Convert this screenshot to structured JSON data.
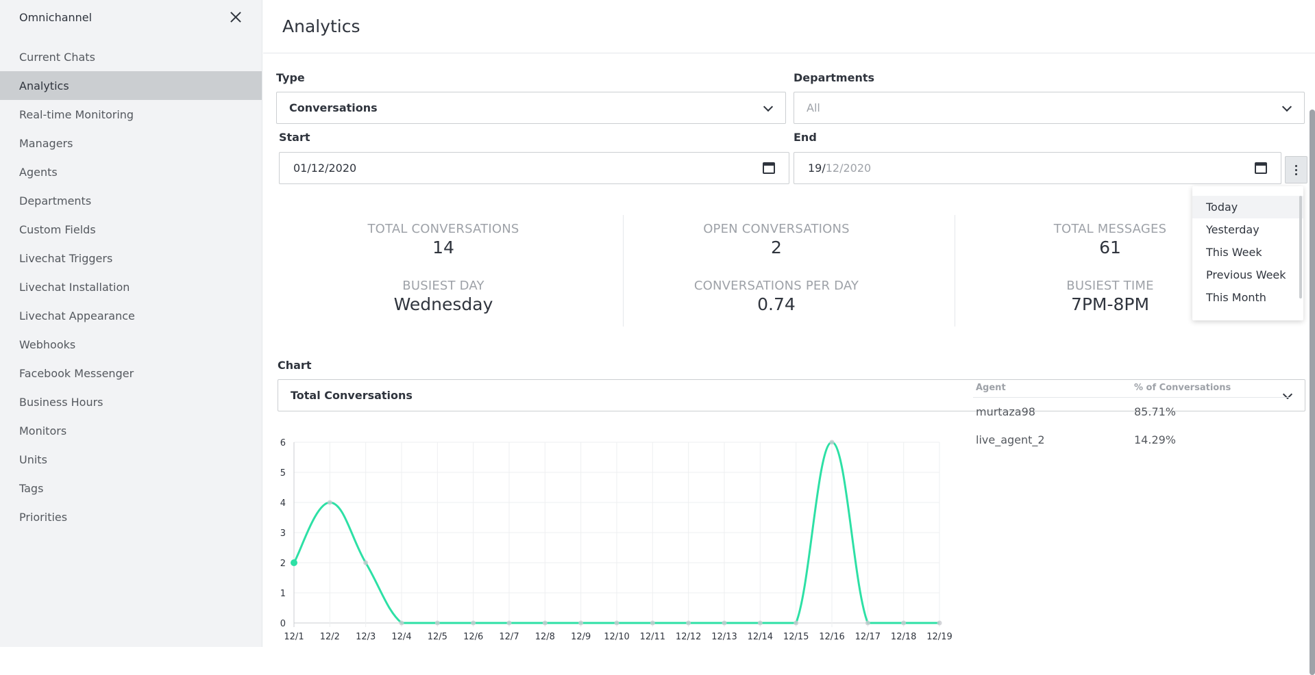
{
  "sidebar": {
    "title": "Omnichannel",
    "items": [
      {
        "label": "Current Chats"
      },
      {
        "label": "Analytics"
      },
      {
        "label": "Real-time Monitoring"
      },
      {
        "label": "Managers"
      },
      {
        "label": "Agents"
      },
      {
        "label": "Departments"
      },
      {
        "label": "Custom Fields"
      },
      {
        "label": "Livechat Triggers"
      },
      {
        "label": "Livechat Installation"
      },
      {
        "label": "Livechat Appearance"
      },
      {
        "label": "Webhooks"
      },
      {
        "label": "Facebook Messenger"
      },
      {
        "label": "Business Hours"
      },
      {
        "label": "Monitors"
      },
      {
        "label": "Units"
      },
      {
        "label": "Tags"
      },
      {
        "label": "Priorities"
      }
    ]
  },
  "header": {
    "title": "Analytics"
  },
  "filters": {
    "type_label": "Type",
    "type_value": "Conversations",
    "departments_label": "Departments",
    "departments_placeholder": "All",
    "start_label": "Start",
    "start_value": "01/12/2020",
    "end_label": "End",
    "end_day": "19/",
    "end_rest": "12/2020"
  },
  "date_presets": [
    "Today",
    "Yesterday",
    "This Week",
    "Previous Week",
    "This Month"
  ],
  "stats": [
    {
      "label": "TOTAL CONVERSATIONS",
      "value": "14"
    },
    {
      "label": "OPEN CONVERSATIONS",
      "value": "2"
    },
    {
      "label": "TOTAL MESSAGES",
      "value": "61"
    },
    {
      "label": "BUSIEST DAY",
      "value": "Wednesday"
    },
    {
      "label": "CONVERSATIONS PER DAY",
      "value": "0.74"
    },
    {
      "label": "BUSIEST TIME",
      "value": "7PM-8PM"
    }
  ],
  "chart_select": {
    "label": "Chart",
    "value": "Total Conversations"
  },
  "table": {
    "headers": [
      "Agent",
      "% of Conversations"
    ],
    "rows": [
      {
        "agent": "murtaza98",
        "percent": "85.71%"
      },
      {
        "agent": "live_agent_2",
        "percent": "14.29%"
      }
    ]
  },
  "colors": {
    "line": "#2de0a5",
    "active_item": "#cbced1"
  },
  "chart_data": {
    "type": "line",
    "categories": [
      "12/1",
      "12/2",
      "12/3",
      "12/4",
      "12/5",
      "12/6",
      "12/7",
      "12/8",
      "12/9",
      "12/10",
      "12/11",
      "12/12",
      "12/13",
      "12/14",
      "12/15",
      "12/16",
      "12/17",
      "12/18",
      "12/19"
    ],
    "series": [
      {
        "name": "Total Conversations",
        "values": [
          2,
          4,
          2,
          0,
          0,
          0,
          0,
          0,
          0,
          0,
          0,
          0,
          0,
          0,
          0,
          6,
          0,
          0,
          0
        ]
      }
    ],
    "ylim": [
      0,
      6
    ],
    "yticks": [
      0,
      1,
      2,
      3,
      4,
      5,
      6
    ],
    "grid": true
  }
}
